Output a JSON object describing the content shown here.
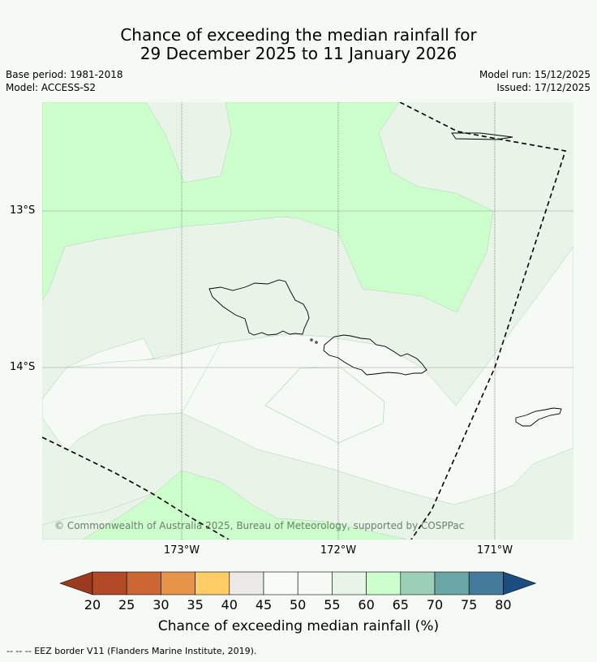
{
  "title": {
    "line1": "Chance of exceeding the median rainfall for",
    "line2": "29 December 2025 to 11 January 2026"
  },
  "meta": {
    "base_period": "Base period: 1981-2018",
    "model": "Model: ACCESS-S2",
    "model_run": "Model run: 15/12/2025",
    "issued": "Issued: 17/12/2025"
  },
  "map": {
    "lat_labels": [
      "13°S",
      "14°S"
    ],
    "lon_labels": [
      "173°W",
      "172°W",
      "171°W"
    ],
    "copyright": "© Commonwealth of Australia 2025, Bureau of Meteorology, supported by COSPPac",
    "colors": {
      "band_45_55": "#f5faf5",
      "band_55_60": "#e8f4e8",
      "band_60_65": "#ccffcc",
      "coastline": "#000000",
      "gridline": "#555555"
    }
  },
  "colorbar": {
    "ticks": [
      "20",
      "25",
      "30",
      "35",
      "40",
      "45",
      "50",
      "55",
      "60",
      "65",
      "70",
      "75",
      "80"
    ],
    "colors": [
      "#b24a28",
      "#cc6633",
      "#e5944a",
      "#ffcc66",
      "#eceae6",
      "#f8fbf8",
      "#f5faf5",
      "#e8f4e8",
      "#ccffcc",
      "#9ccfb8",
      "#6aa6a6",
      "#447b9c"
    ],
    "under_color": "#9c3a20",
    "over_color": "#1a4e82",
    "title": "Chance of exceeding median rainfall (%)"
  },
  "footnote": "--  --  -- EEZ border V11 (Flanders Marine Institute, 2019)."
}
